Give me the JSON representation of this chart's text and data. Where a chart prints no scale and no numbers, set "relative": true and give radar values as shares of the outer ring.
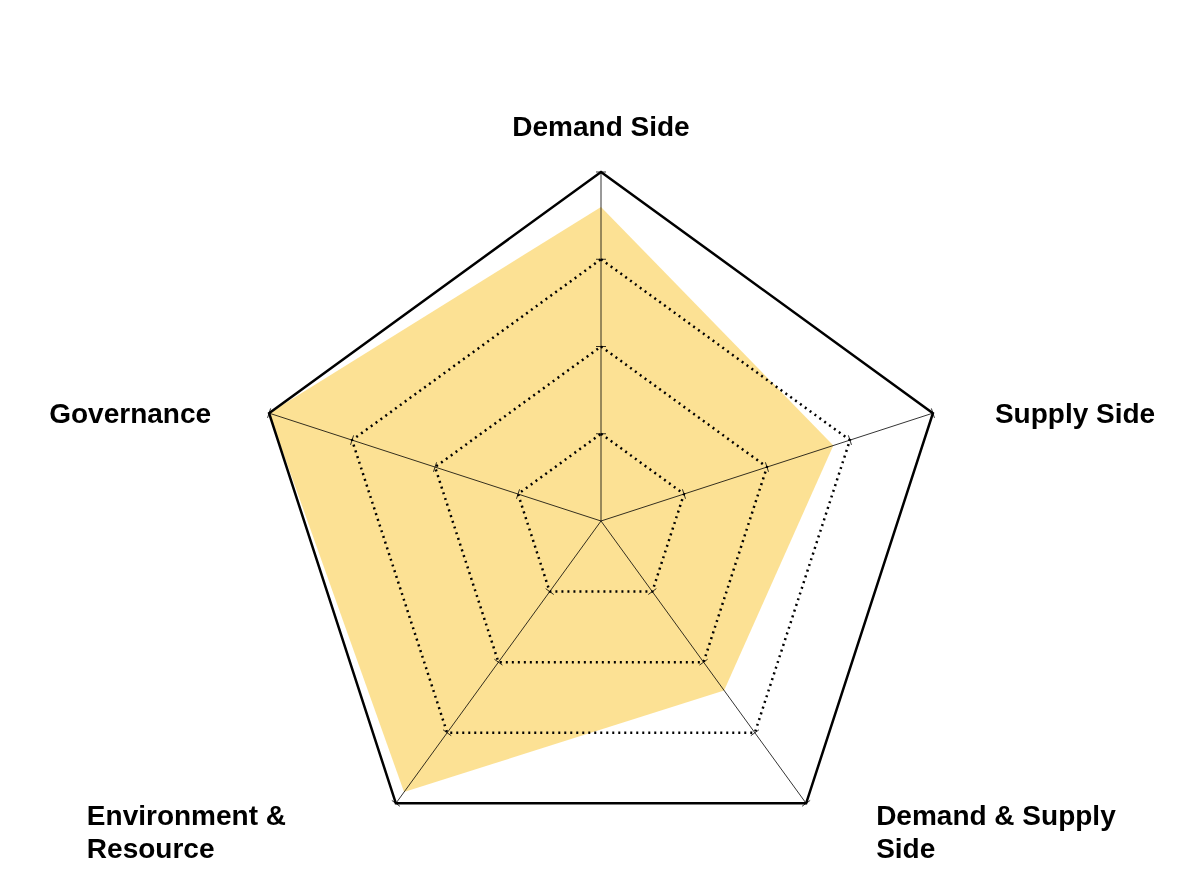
{
  "chart_data": {
    "type": "radar",
    "relative": true,
    "grid": true,
    "categories": [
      "Demand Side",
      "Supply Side",
      "Demand & Supply Side",
      "Environment & Resource",
      "Governance"
    ],
    "series": [
      {
        "color": "#fbd15b",
        "values": [
          0.9,
          0.7,
          0.6,
          0.96,
          1.0
        ]
      }
    ]
  }
}
